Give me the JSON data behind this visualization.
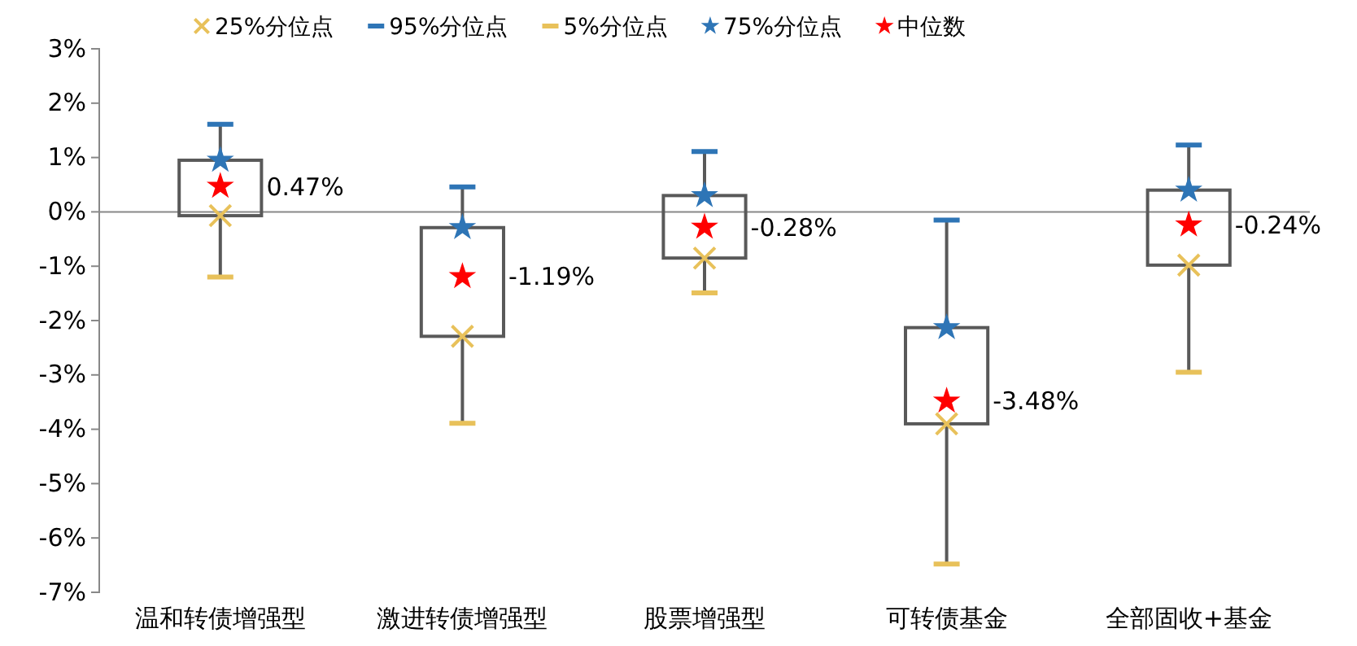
{
  "chart_data": {
    "type": "box",
    "categories": [
      "温和转债增强型",
      "激进转债增强型",
      "股票增强型",
      "可转债基金",
      "全部固收+基金"
    ],
    "boxes": [
      {
        "low": -1.2,
        "q1": -0.07,
        "q3": 0.95,
        "high": 1.61
      },
      {
        "low": -3.89,
        "q1": -2.29,
        "q3": -0.29,
        "high": 0.46
      },
      {
        "low": -1.49,
        "q1": -0.85,
        "q3": 0.3,
        "high": 1.11
      },
      {
        "low": -6.48,
        "q1": -3.9,
        "q3": -2.13,
        "high": -0.15
      },
      {
        "low": -2.95,
        "q1": -0.98,
        "q3": 0.4,
        "high": 1.23
      }
    ],
    "series": [
      {
        "name": "25%分位点",
        "type": "scatter",
        "color": "#e8c15a",
        "marker": "cross",
        "x": [
          "温和转债增强型",
          "激进转债增强型",
          "股票增强型",
          "可转债基金",
          "全部固收+基金"
        ],
        "values": [
          -0.07,
          -2.29,
          -0.85,
          -3.9,
          -0.98
        ]
      },
      {
        "name": "95%分位点",
        "type": "scatter",
        "color": "#2e75b6",
        "x": [
          "温和转债增强型",
          "激进转债增强型",
          "股票增强型",
          "可转债基金",
          "全部固收+基金"
        ],
        "values": [
          1.61,
          0.46,
          1.11,
          -0.15,
          1.23
        ]
      },
      {
        "name": "5%分位点",
        "type": "scatter",
        "color": "#e8c15a",
        "x": [
          "温和转债增强型",
          "激进转债增强型",
          "股票增强型",
          "可转债基金",
          "全部固收+基金"
        ],
        "values": [
          -1.2,
          -3.89,
          -1.49,
          -6.48,
          -2.95
        ]
      },
      {
        "name": "75%分位点",
        "type": "scatter",
        "color": "#2e75b6",
        "marker": "star",
        "x": [
          "温和转债增强型",
          "激进转债增强型",
          "股票增强型",
          "可转债基金",
          "全部固收+基金"
        ],
        "values": [
          0.95,
          -0.29,
          0.3,
          -2.13,
          0.4
        ]
      },
      {
        "name": "中位数",
        "type": "scatter",
        "color": "#ff0000",
        "marker": "star",
        "x": [
          "温和转债增强型",
          "激进转债增强型",
          "股票增强型",
          "可转债基金",
          "全部固收+基金"
        ],
        "values": [
          0.47,
          -1.19,
          -0.28,
          -3.48,
          -0.24
        ],
        "value_labels": [
          "0.47%",
          "-1.19%",
          "-0.28%",
          "-3.48%",
          "-0.24%"
        ]
      }
    ],
    "ylim": [
      -7,
      3
    ],
    "yticks": [
      {
        "value": 3,
        "label": "3%"
      },
      {
        "value": 2,
        "label": "2%"
      },
      {
        "value": 1,
        "label": "1%"
      },
      {
        "value": 0,
        "label": "0%"
      },
      {
        "value": -1,
        "label": "-1%"
      },
      {
        "value": -2,
        "label": "-2%"
      },
      {
        "value": -3,
        "label": "-3%"
      },
      {
        "value": -4,
        "label": "-4%"
      },
      {
        "value": -5,
        "label": "-5%"
      },
      {
        "value": -6,
        "label": "-6%"
      },
      {
        "value": -7,
        "label": "-7%"
      }
    ],
    "legend": "top"
  }
}
